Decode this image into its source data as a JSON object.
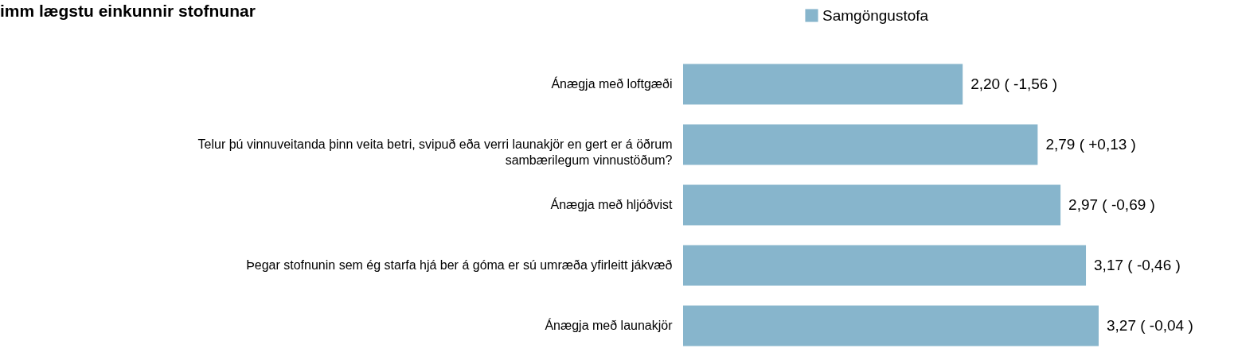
{
  "chart_data": {
    "type": "bar",
    "orientation": "horizontal",
    "title": "imm lægstu einkunnir stofnunar",
    "legend": "top",
    "categories": [
      "Ánægja með loftgæði",
      "Telur þú vinnuveitanda þinn veita betri, svipuð eða verri launakjör en gert er á öðrum sambærilegum vinnustöðum?",
      "Ánægja með hljóðvist",
      "Þegar stofnunin sem ég starfa hjá ber á góma er sú umræða yfirleitt jákvæð",
      "Ánægja með launakjör"
    ],
    "series": [
      {
        "name": "Samgöngustofa",
        "color": "#87b5cc",
        "values": [
          2.2,
          2.79,
          2.97,
          3.17,
          3.27
        ],
        "value_labels": [
          "2,20 ( -1,56 )",
          "2,79 ( +0,13 )",
          "2,97 ( -0,69 )",
          "3,17 ( -0,46 )",
          "3,27 ( -0,04 )"
        ]
      }
    ]
  }
}
